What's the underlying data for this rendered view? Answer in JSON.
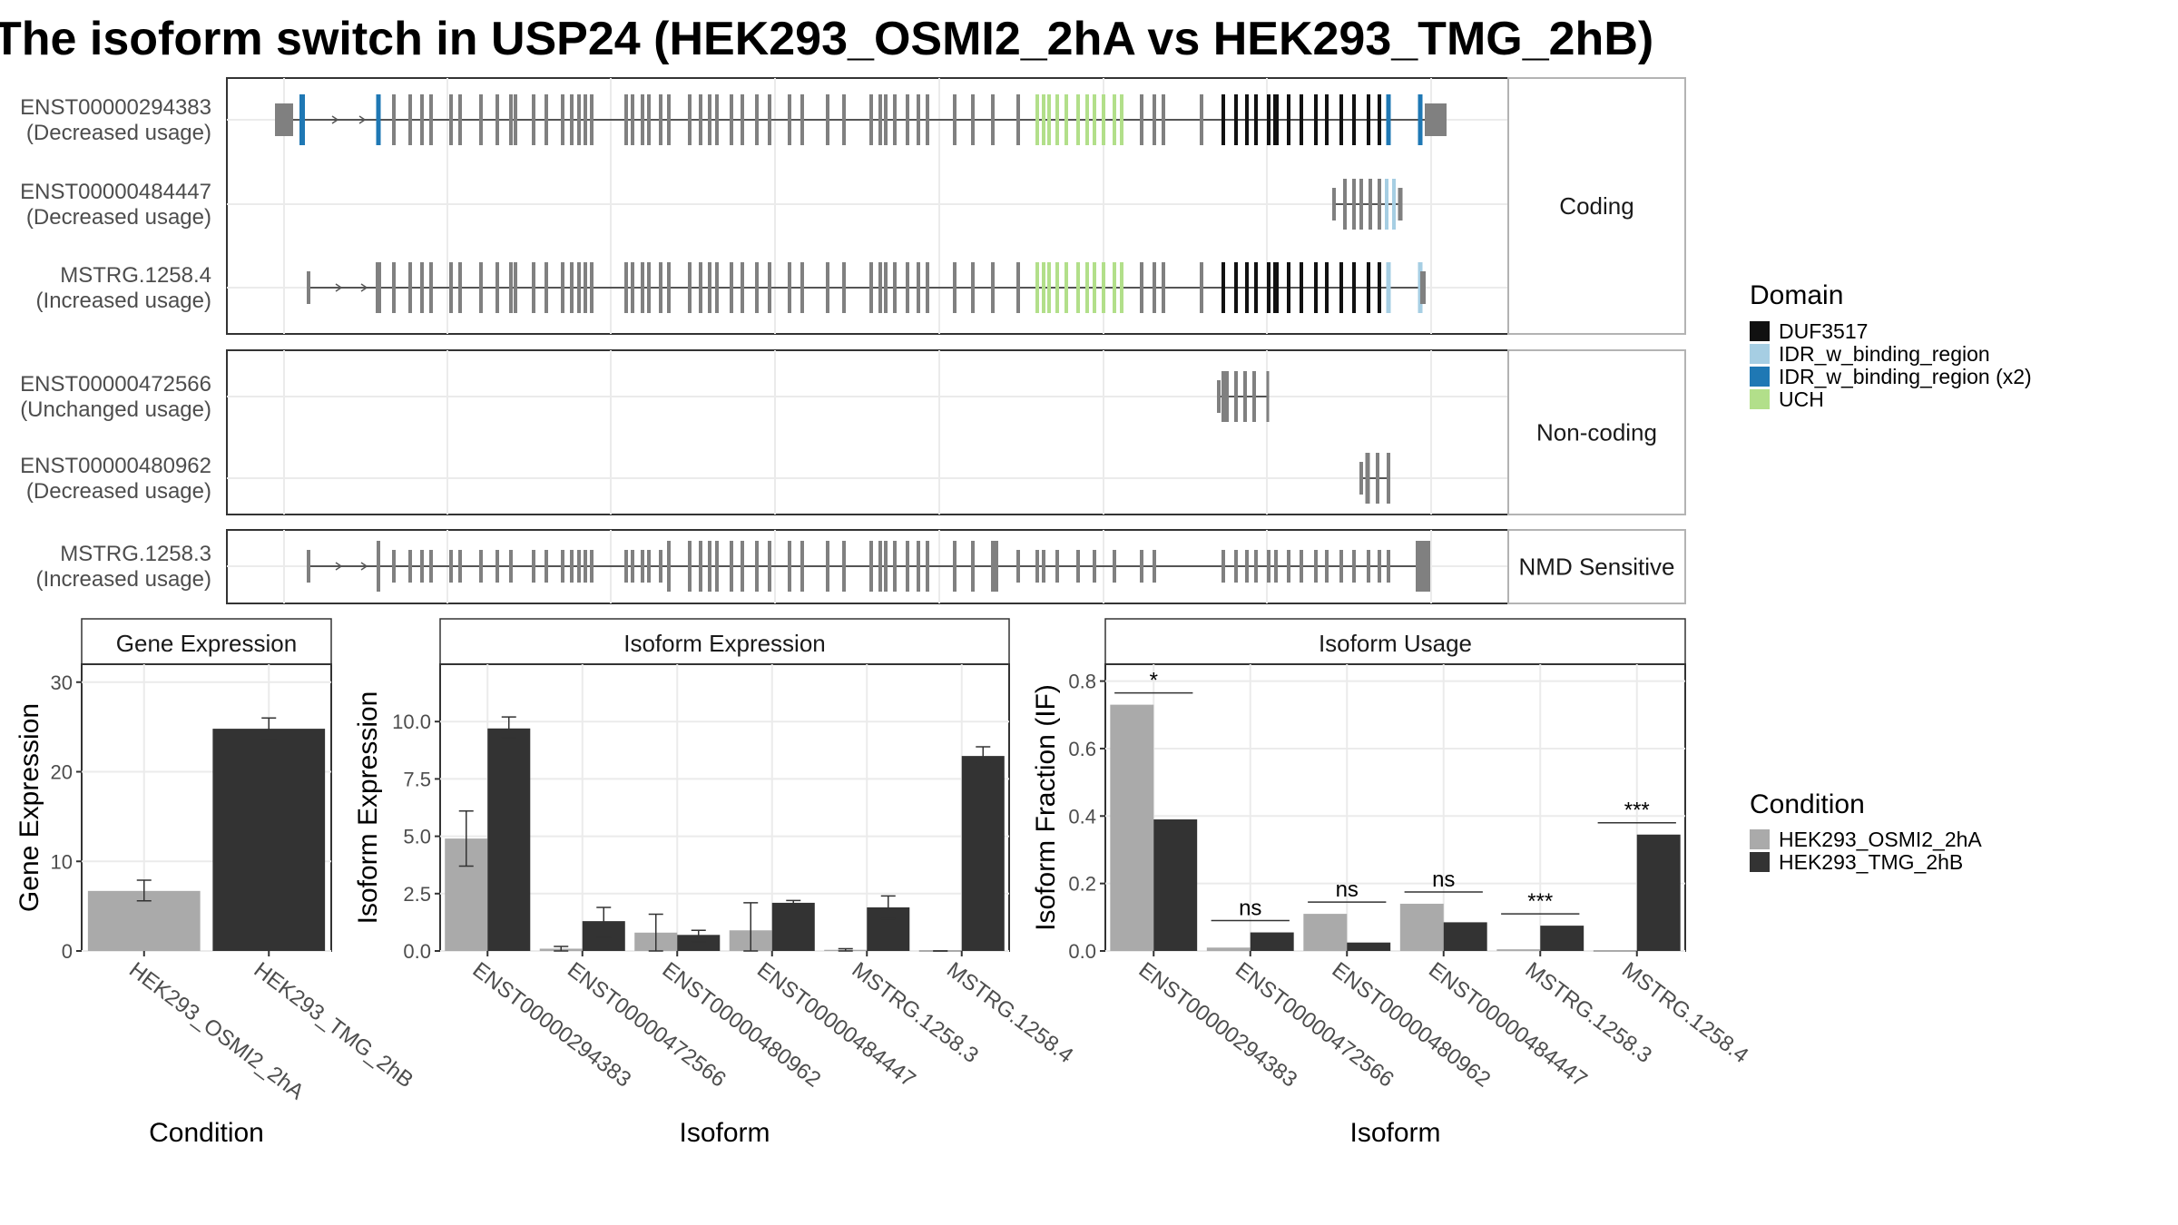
{
  "title": "The isoform switch in USP24 (HEK293_OSMI2_2hA vs HEK293_TMG_2hB)",
  "colors": {
    "DUF3517": "#111111",
    "IDR_w_binding_region": "#a6cee3",
    "IDR_w_binding_region (x2)": "#1f78b4",
    "UCH": "#b2df8a",
    "none": "#808080",
    "cond_a": "#aaaaaa",
    "cond_b": "#333333"
  },
  "structure": {
    "panels": [
      {
        "name": "Coding",
        "isoforms": [
          {
            "label": "ENST00000294383",
            "usage": "(Decreased usage)"
          },
          {
            "label": "ENST00000484447",
            "usage": "(Decreased usage)"
          },
          {
            "label": "MSTRG.1258.4",
            "usage": "(Increased usage)"
          }
        ]
      },
      {
        "name": "Non-coding",
        "isoforms": [
          {
            "label": "ENST00000472566",
            "usage": "(Unchanged usage)"
          },
          {
            "label": "ENST00000480962",
            "usage": "(Decreased usage)"
          }
        ]
      },
      {
        "name": "NMD Sensitive",
        "isoforms": [
          {
            "label": "MSTRG.1258.3",
            "usage": "(Increased usage)"
          }
        ]
      }
    ],
    "legend": {
      "title": "Domain",
      "items": [
        "DUF3517",
        "IDR_w_binding_region",
        "IDR_w_binding_region (x2)",
        "UCH"
      ]
    }
  },
  "chart_data": [
    {
      "type": "bar",
      "title": "Gene Expression",
      "xlabel": "Condition",
      "ylabel": "Gene Expression",
      "ylim": [
        0,
        32
      ],
      "yticks": [
        0,
        10,
        20,
        30
      ],
      "categories": [
        "HEK293_OSMI2_2hA",
        "HEK293_TMG_2hB"
      ],
      "values": [
        6.7,
        24.8
      ],
      "errors": [
        [
          5.6,
          7.9
        ],
        [
          23.6,
          26.0
        ]
      ]
    },
    {
      "type": "bar",
      "title": "Isoform Expression",
      "xlabel": "Isoform",
      "ylabel": "Isoform Expression",
      "ylim": [
        0,
        12.5
      ],
      "yticks": [
        "0.0",
        "2.5",
        "5.0",
        "7.5",
        "10.0"
      ],
      "categories": [
        "ENST00000294383",
        "ENST00000472566",
        "ENST00000480962",
        "ENST00000484447",
        "MSTRG.1258.3",
        "MSTRG.1258.4"
      ],
      "series": [
        {
          "name": "HEK293_OSMI2_2hA",
          "values": [
            4.9,
            0.1,
            0.8,
            0.9,
            0.05,
            0.0
          ],
          "errors": [
            [
              3.7,
              6.1
            ],
            [
              0.0,
              0.2
            ],
            [
              0.0,
              1.6
            ],
            [
              0.0,
              2.1
            ],
            [
              0.0,
              0.1
            ],
            [
              0.0,
              0.0
            ]
          ]
        },
        {
          "name": "HEK293_TMG_2hB",
          "values": [
            9.7,
            1.3,
            0.7,
            2.1,
            1.9,
            8.5
          ],
          "errors": [
            [
              9.3,
              10.2
            ],
            [
              0.6,
              1.9
            ],
            [
              0.4,
              0.9
            ],
            [
              1.95,
              2.2
            ],
            [
              1.4,
              2.4
            ],
            [
              8.2,
              8.9
            ]
          ]
        }
      ]
    },
    {
      "type": "bar",
      "title": "Isoform Usage",
      "xlabel": "Isoform",
      "ylabel": "Isoform Fraction (IF)",
      "ylim": [
        0,
        0.85
      ],
      "yticks": [
        "0.0",
        "0.2",
        "0.4",
        "0.6",
        "0.8"
      ],
      "categories": [
        "ENST00000294383",
        "ENST00000472566",
        "ENST00000480962",
        "ENST00000484447",
        "MSTRG.1258.3",
        "MSTRG.1258.4"
      ],
      "series": [
        {
          "name": "HEK293_OSMI2_2hA",
          "values": [
            0.73,
            0.01,
            0.11,
            0.14,
            0.005,
            0.0
          ]
        },
        {
          "name": "HEK293_TMG_2hB",
          "values": [
            0.39,
            0.055,
            0.025,
            0.085,
            0.075,
            0.345
          ]
        }
      ],
      "significance": [
        "*",
        "ns",
        "ns",
        "ns",
        "***",
        "***"
      ]
    }
  ],
  "condition_legend": {
    "title": "Condition",
    "items": [
      "HEK293_OSMI2_2hA",
      "HEK293_TMG_2hB"
    ]
  }
}
